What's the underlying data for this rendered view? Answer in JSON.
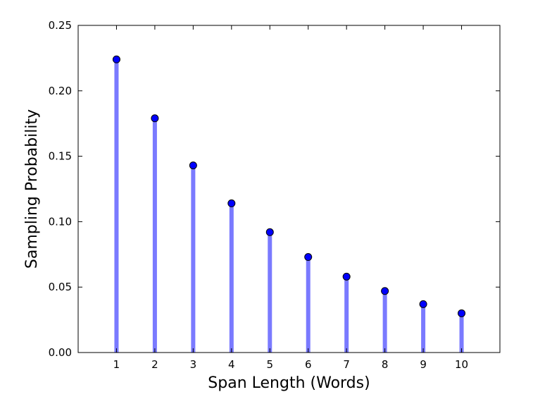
{
  "chart_data": {
    "type": "stem",
    "title": "",
    "xlabel": "Span Length (Words)",
    "ylabel": "Sampling Probability",
    "x": [
      1,
      2,
      3,
      4,
      5,
      6,
      7,
      8,
      9,
      10
    ],
    "values": [
      0.224,
      0.179,
      0.143,
      0.114,
      0.092,
      0.073,
      0.058,
      0.047,
      0.037,
      0.03
    ],
    "xlim": [
      0,
      11
    ],
    "ylim": [
      0,
      0.25
    ],
    "x_ticks": [
      "1",
      "2",
      "3",
      "4",
      "5",
      "6",
      "7",
      "8",
      "9",
      "10"
    ],
    "y_ticks": [
      "0.00",
      "0.05",
      "0.10",
      "0.15",
      "0.20",
      "0.25"
    ],
    "grid": false,
    "stem_color": "#7a7aff",
    "marker_color": "#0000ff"
  }
}
